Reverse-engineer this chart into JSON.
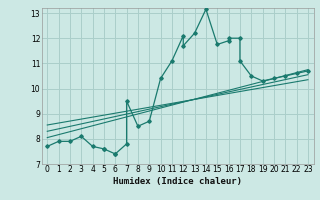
{
  "xlabel": "Humidex (Indice chaleur)",
  "bg_color": "#cce8e4",
  "line_color": "#1a7a6e",
  "grid_color": "#aaceca",
  "xlim": [
    -0.5,
    23.5
  ],
  "ylim": [
    7,
    13.2
  ],
  "xticks": [
    0,
    1,
    2,
    3,
    4,
    5,
    6,
    7,
    8,
    9,
    10,
    11,
    12,
    13,
    14,
    15,
    16,
    17,
    18,
    19,
    20,
    21,
    22,
    23
  ],
  "yticks": [
    7,
    8,
    9,
    10,
    11,
    12,
    13
  ],
  "main_x": [
    0,
    1,
    2,
    3,
    4,
    5,
    5,
    6,
    6,
    7,
    7,
    8,
    9,
    10,
    11,
    12,
    12,
    13,
    14,
    15,
    16,
    16,
    17,
    17,
    18,
    19,
    20,
    21,
    22,
    23
  ],
  "main_y": [
    7.7,
    7.9,
    7.9,
    8.1,
    7.7,
    7.6,
    7.6,
    7.4,
    7.4,
    7.8,
    9.5,
    8.5,
    8.7,
    10.4,
    11.1,
    12.1,
    11.7,
    12.2,
    13.15,
    11.75,
    11.9,
    12.0,
    12.0,
    11.1,
    10.5,
    10.3,
    10.4,
    10.5,
    10.6,
    10.7
  ],
  "line1_x": [
    0,
    23
  ],
  "line1_y": [
    8.05,
    10.75
  ],
  "line2_x": [
    0,
    23
  ],
  "line2_y": [
    8.3,
    10.55
  ],
  "line3_x": [
    0,
    23
  ],
  "line3_y": [
    8.55,
    10.35
  ],
  "xlabel_fontsize": 6.5,
  "tick_fontsize": 5.5
}
